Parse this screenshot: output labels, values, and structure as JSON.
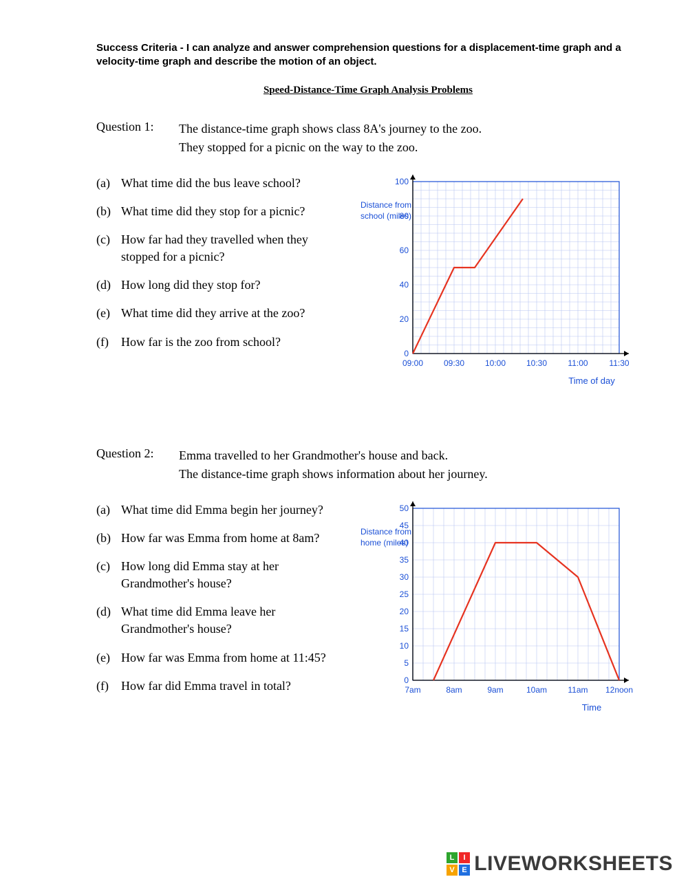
{
  "criteria": "Success Criteria - I can analyze and answer comprehension questions for a displacement-time graph and a velocity-time graph and describe the motion of an object.",
  "subtitle": "Speed-Distance-Time Graph Analysis Problems",
  "q1": {
    "num": "Question 1:",
    "text1": "The distance-time graph shows class 8A's journey to the zoo.",
    "text2": "They stopped for a picnic on the way to the zoo.",
    "subs": {
      "a": "What time did the bus leave school?",
      "b": "What time did they stop for a picnic?",
      "c": "How far had they travelled when they stopped for a picnic?",
      "d": "How long did they stop for?",
      "e": "What time did they arrive at the zoo?",
      "f": "How far is the zoo from school?"
    },
    "chart": {
      "ylabel1": "Distance from",
      "ylabel2": "school (miles)",
      "xlabel": "Time of day",
      "xticks": [
        "09:00",
        "09:30",
        "10:00",
        "10:30",
        "11:00",
        "11:30"
      ],
      "yticks": [
        "0",
        "20",
        "40",
        "60",
        "80",
        "100"
      ],
      "ylim": [
        0,
        100
      ],
      "ystep": 20,
      "yminor": 5,
      "grid_color": "#b8c6f2",
      "border_color": "#1a4fd6",
      "line_color": "#e63320",
      "line_width": 2.2,
      "points_time": [
        0,
        1,
        1.5,
        2.666
      ],
      "points_dist": [
        0,
        50,
        50,
        90
      ]
    }
  },
  "q2": {
    "num": "Question 2:",
    "text1": "Emma travelled to her Grandmother's house and back.",
    "text2": "The distance-time graph shows information about her journey.",
    "subs": {
      "a": "What time did Emma begin her journey?",
      "b": "How far was Emma from home at 8am?",
      "c": "How long did Emma stay at her Grandmother's house?",
      "d": "What time did Emma leave her Grandmother's house?",
      "e": "How far was Emma from home at 11:45?",
      "f": "How far did Emma travel in total?"
    },
    "chart": {
      "ylabel1": "Distance from",
      "ylabel2": "home (miles)",
      "xlabel": "Time",
      "xticks": [
        "7am",
        "8am",
        "9am",
        "10am",
        "11am",
        "12noon"
      ],
      "yticks": [
        "0",
        "5",
        "10",
        "15",
        "20",
        "25",
        "30",
        "35",
        "40",
        "45",
        "50"
      ],
      "ylim": [
        0,
        50
      ],
      "ystep": 5,
      "grid_color": "#b8c6f2",
      "border_color": "#1a4fd6",
      "line_color": "#e63320",
      "line_width": 2.2,
      "points_time": [
        0.5,
        2,
        3,
        4,
        5
      ],
      "points_dist": [
        0,
        40,
        40,
        30,
        0
      ]
    }
  },
  "watermark": {
    "text": "LIVEWORKSHEETS",
    "colors": [
      "#2ea52e",
      "#f02828",
      "#f7a300",
      "#1f6fe0"
    ],
    "letters": [
      "L",
      "I",
      "V",
      "E"
    ]
  }
}
